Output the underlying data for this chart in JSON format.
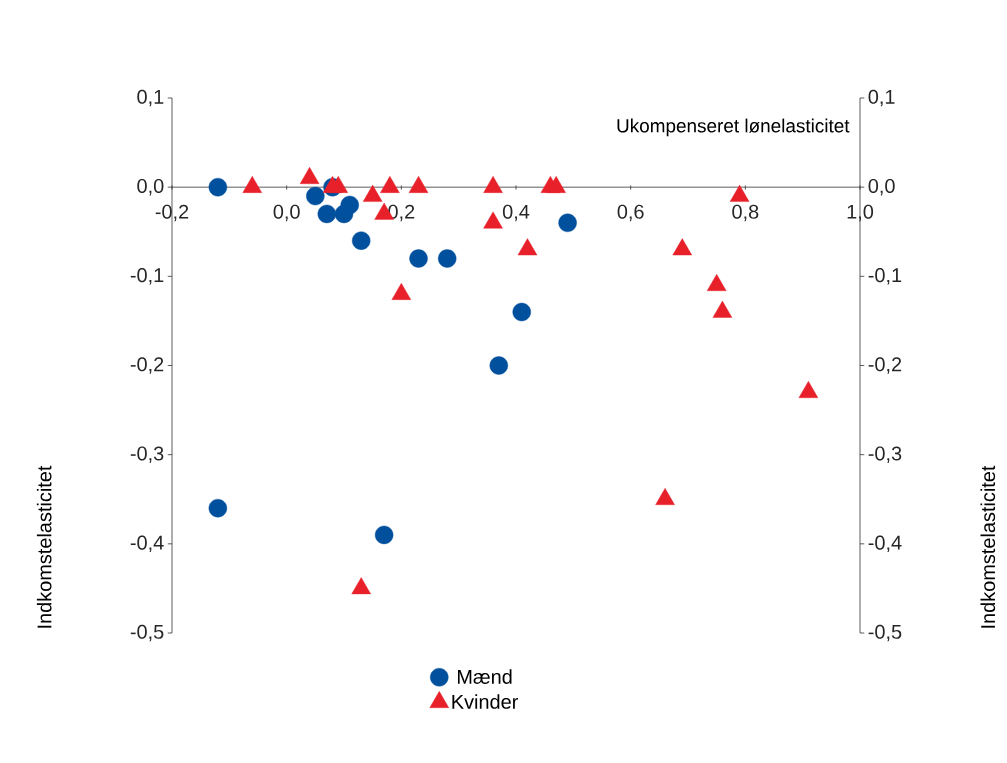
{
  "chart_data": {
    "type": "scatter",
    "xlabel": "Ukompenseret lønelasticitet",
    "ylabel": "Indkomstelasticitet",
    "y2label": "Indkomstelasticitet",
    "xlim": [
      -0.2,
      1.0
    ],
    "ylim": [
      -0.5,
      0.1
    ],
    "y2lim": [
      -0.5,
      0.1
    ],
    "xticks": [
      {
        "value": -0.2,
        "label": "-0,2"
      },
      {
        "value": 0.0,
        "label": "0,0"
      },
      {
        "value": 0.2,
        "label": "0,2"
      },
      {
        "value": 0.4,
        "label": "0,4"
      },
      {
        "value": 0.6,
        "label": "0,6"
      },
      {
        "value": 0.8,
        "label": "0,8"
      },
      {
        "value": 1.0,
        "label": "1,0"
      }
    ],
    "yticks": [
      {
        "value": 0.1,
        "label": "0,1"
      },
      {
        "value": 0.0,
        "label": "0,0"
      },
      {
        "value": -0.1,
        "label": "-0,1"
      },
      {
        "value": -0.2,
        "label": "-0,2"
      },
      {
        "value": -0.3,
        "label": "-0,3"
      },
      {
        "value": -0.4,
        "label": "-0,4"
      },
      {
        "value": -0.5,
        "label": "-0,5"
      }
    ],
    "y2ticks": [
      {
        "value": 0.1,
        "label": "0,1"
      },
      {
        "value": 0.0,
        "label": "0,0"
      },
      {
        "value": -0.1,
        "label": "-0,1"
      },
      {
        "value": -0.2,
        "label": "-0,2"
      },
      {
        "value": -0.3,
        "label": "-0,3"
      },
      {
        "value": -0.4,
        "label": "-0,4"
      },
      {
        "value": -0.5,
        "label": "-0,5"
      }
    ],
    "legend": "bottom",
    "grid": false,
    "series": [
      {
        "name": "Mænd",
        "color": "#00509e",
        "marker": "circle",
        "x": [
          -0.12,
          0.05,
          0.08,
          0.07,
          0.1,
          0.11,
          0.13,
          0.23,
          0.28,
          0.37,
          0.41,
          0.49,
          -0.12,
          0.17
        ],
        "values": [
          0.0,
          -0.01,
          0.0,
          -0.03,
          -0.03,
          -0.02,
          -0.06,
          -0.08,
          -0.08,
          -0.2,
          -0.14,
          -0.04,
          -0.36,
          -0.39
        ]
      },
      {
        "name": "Kvinder",
        "color": "#e8202a",
        "marker": "triangle",
        "x": [
          -0.06,
          0.04,
          0.08,
          0.09,
          0.15,
          0.18,
          0.17,
          0.2,
          0.23,
          0.36,
          0.36,
          0.42,
          0.46,
          0.47,
          0.69,
          0.75,
          0.76,
          0.79,
          0.91,
          0.66,
          0.13
        ],
        "values": [
          0.0,
          0.01,
          0.0,
          0.0,
          -0.01,
          0.0,
          -0.03,
          -0.12,
          0.0,
          0.0,
          -0.04,
          -0.07,
          0.0,
          0.0,
          -0.07,
          -0.11,
          -0.14,
          -0.01,
          -0.23,
          -0.35,
          -0.45
        ]
      }
    ]
  }
}
